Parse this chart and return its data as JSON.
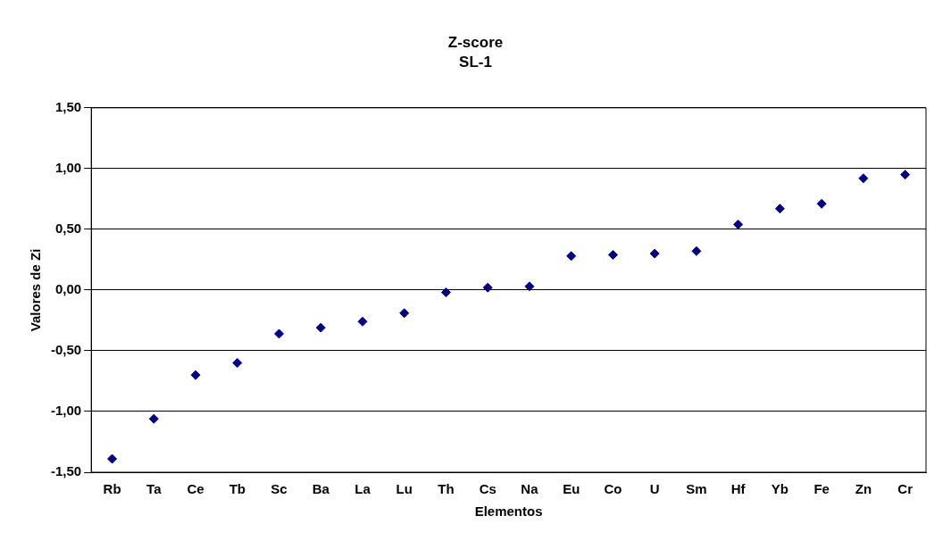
{
  "chart_data": {
    "type": "scatter",
    "title": "Z-score",
    "subtitle": "SL-1",
    "xlabel": "Elementos",
    "ylabel": "Valores de Zi",
    "categories": [
      "Rb",
      "Ta",
      "Ce",
      "Tb",
      "Sc",
      "Ba",
      "La",
      "Lu",
      "Th",
      "Cs",
      "Na",
      "Eu",
      "Co",
      "U",
      "Sm",
      "Hf",
      "Yb",
      "Fe",
      "Zn",
      "Cr"
    ],
    "series": [
      {
        "color": "#00008b",
        "values": [
          -1.39,
          -1.06,
          -0.7,
          -0.6,
          -0.36,
          -0.31,
          -0.26,
          -0.19,
          -0.02,
          0.02,
          0.03,
          0.28,
          0.29,
          0.3,
          0.32,
          0.54,
          0.67,
          0.71,
          0.92,
          0.95
        ]
      }
    ],
    "ylim": [
      -1.5,
      1.5
    ],
    "yticks": [
      {
        "value": -1.5,
        "label": "-1,50"
      },
      {
        "value": -1,
        "label": "-1,00"
      },
      {
        "value": -0.5,
        "label": "-0,50"
      },
      {
        "value": 0,
        "label": "0,00"
      },
      {
        "value": 0.5,
        "label": "0,50"
      },
      {
        "value": 1,
        "label": "1,00"
      },
      {
        "value": 1.5,
        "label": "1,50"
      }
    ],
    "grid": "y",
    "legend": false,
    "marker": "diamond"
  }
}
